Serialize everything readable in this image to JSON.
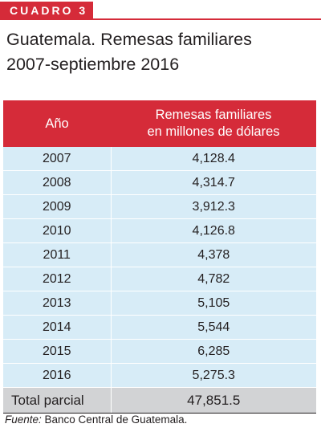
{
  "badge": {
    "label": "CUADRO 3"
  },
  "title": {
    "line1": "Guatemala. Remesas familiares",
    "line2": "2007-septiembre 2016"
  },
  "table": {
    "headers": {
      "year": "Año",
      "value_line1": "Remesas familiares",
      "value_line2": "en millones de dólares"
    },
    "rows": [
      {
        "year": "2007",
        "value": "4,128.4"
      },
      {
        "year": "2008",
        "value": "4,314.7"
      },
      {
        "year": "2009",
        "value": "3,912.3"
      },
      {
        "year": "2010",
        "value": "4,126.8"
      },
      {
        "year": "2011",
        "value": "4,378"
      },
      {
        "year": "2012",
        "value": "4,782"
      },
      {
        "year": "2013",
        "value": "5,105"
      },
      {
        "year": "2014",
        "value": "5,544"
      },
      {
        "year": "2015",
        "value": "6,285"
      },
      {
        "year": "2016",
        "value": "5,275.3"
      }
    ],
    "total": {
      "label": "Total parcial",
      "value": "47,851.5"
    }
  },
  "source": {
    "label": "Fuente:",
    "text": " Banco Central de Guatemala."
  },
  "colors": {
    "accent": "#d52b39",
    "row_background": "#d7ecf7",
    "total_background": "#d2d3d5"
  }
}
